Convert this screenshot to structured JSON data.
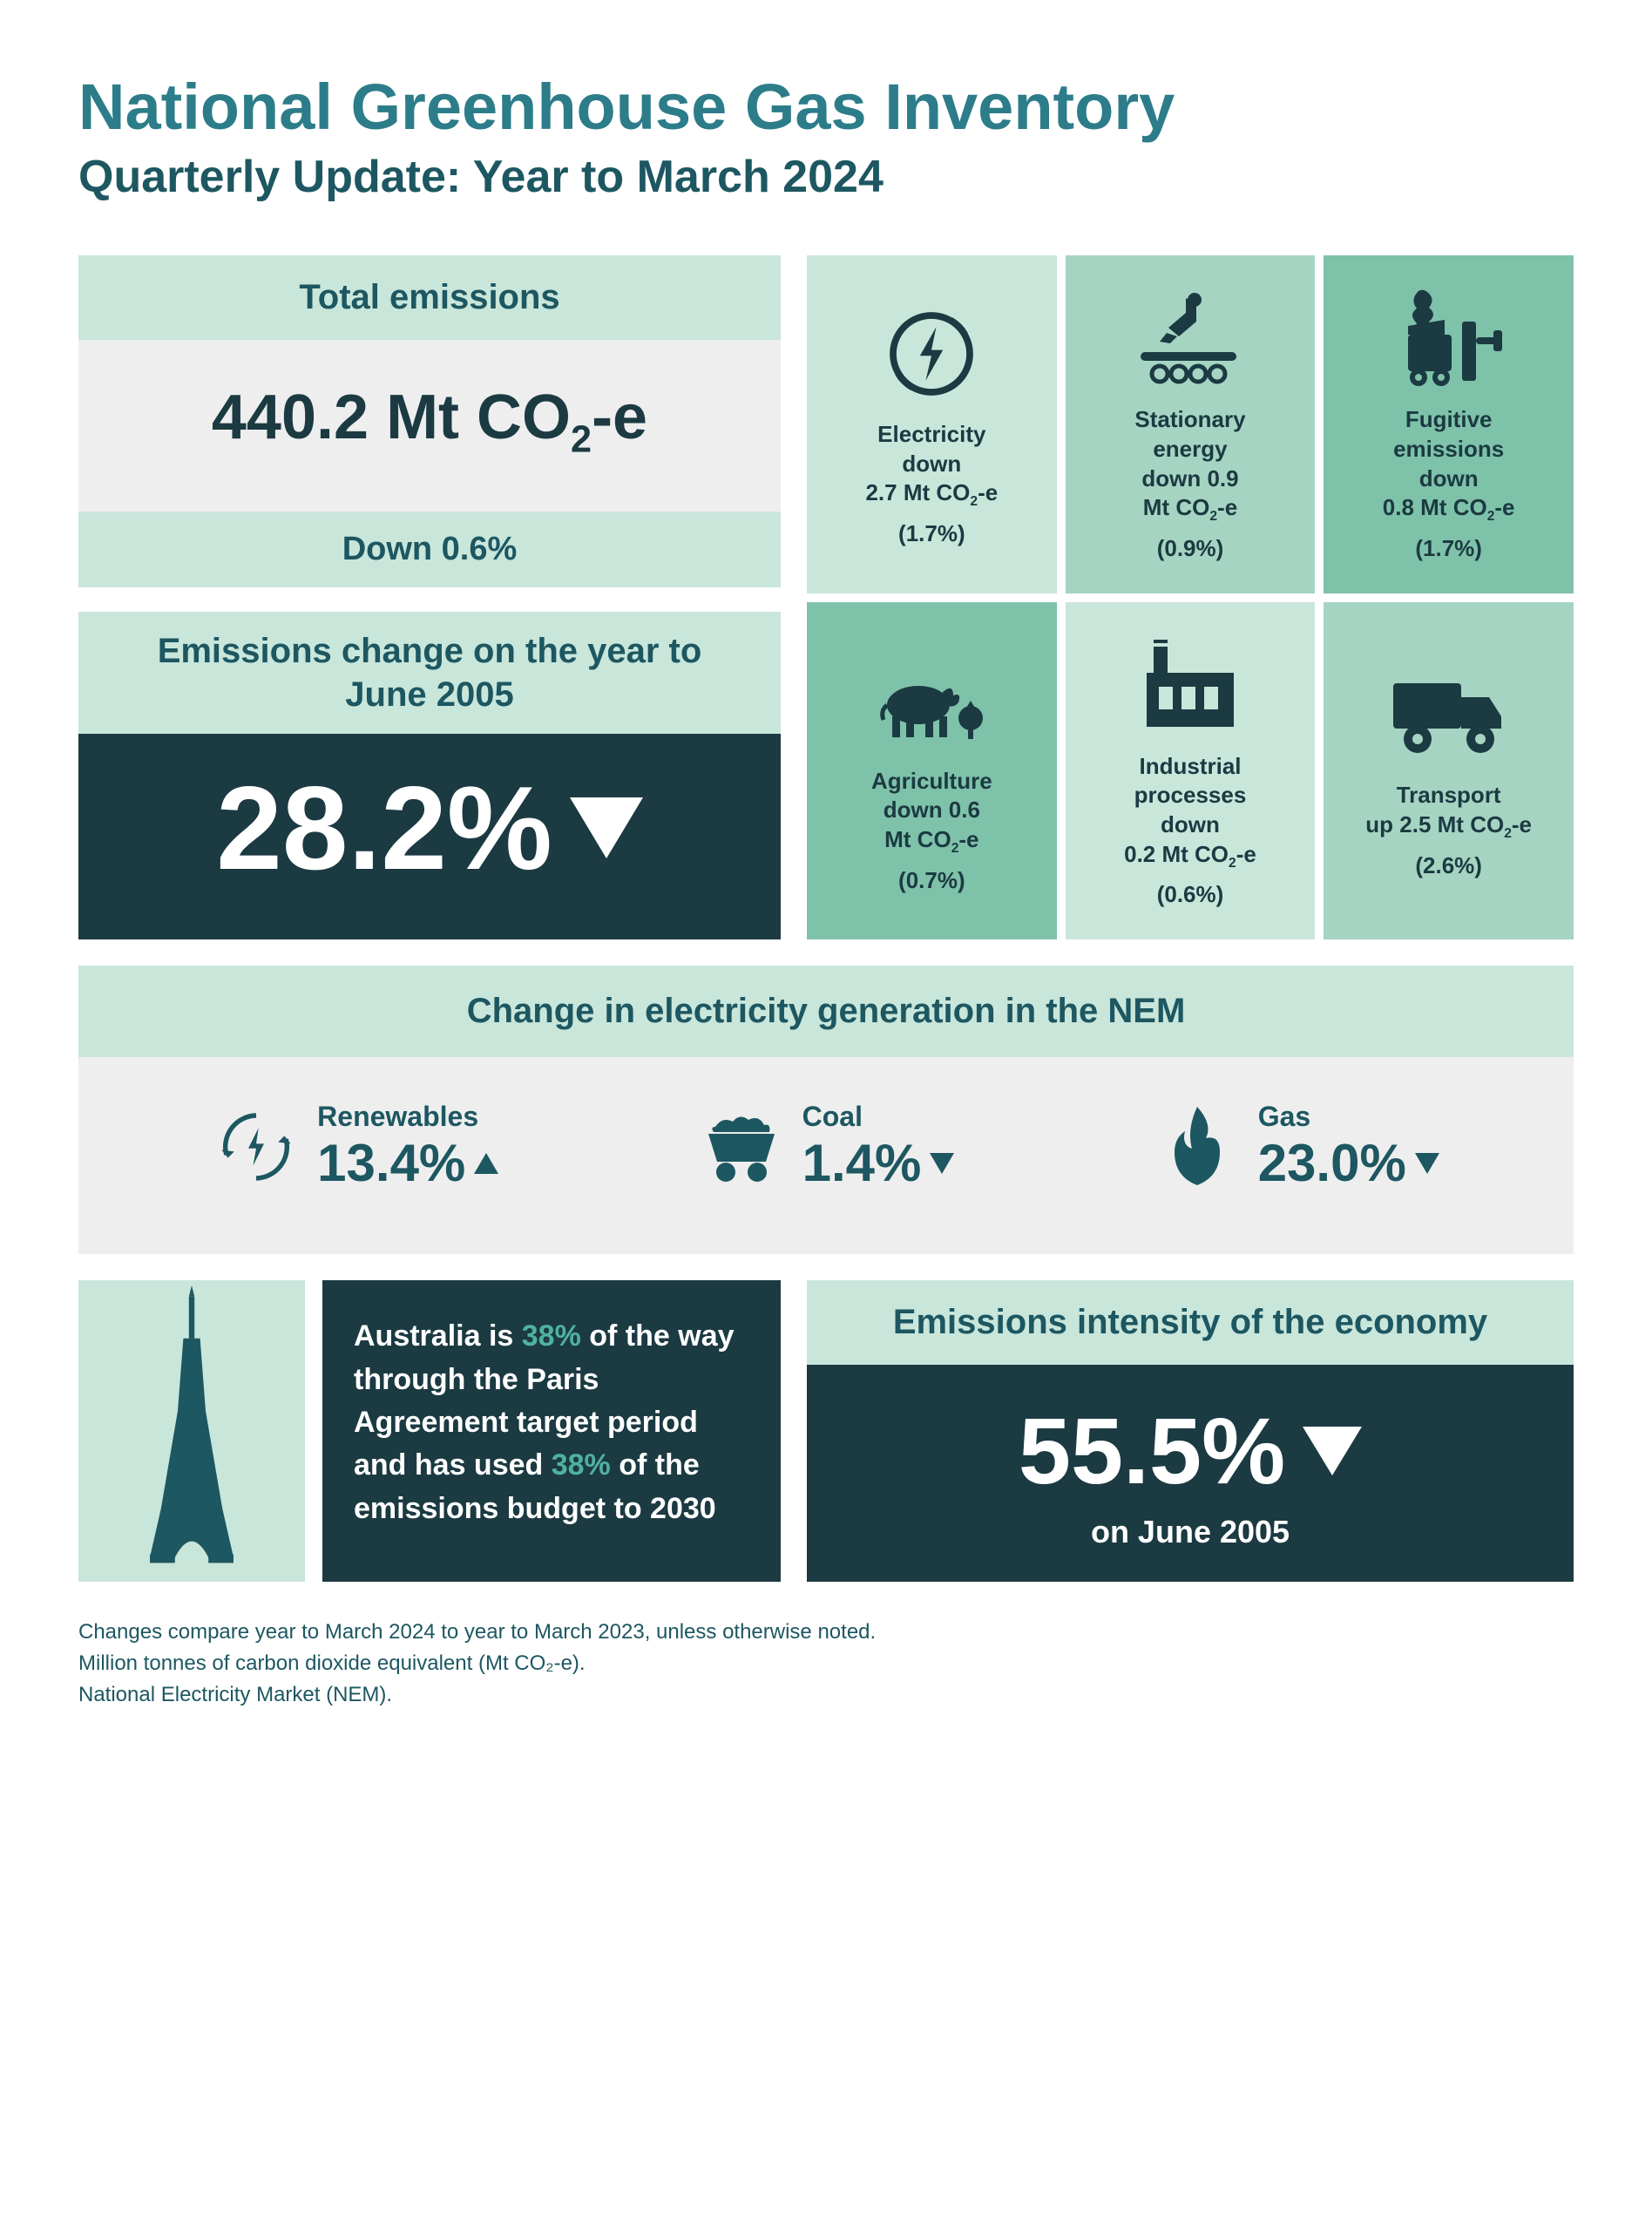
{
  "type": "infographic",
  "colors": {
    "teal_dark": "#1b3a42",
    "teal_mid": "#1d5761",
    "teal_accent": "#2c7d89",
    "mint_light": "#c9e6db",
    "mint_mid": "#a6d4c2",
    "mint_dark": "#7fc2aa",
    "gray_light": "#eeeeee",
    "paris_accent": "#4fb2a0",
    "white": "#ffffff"
  },
  "title": "National Greenhouse Gas Inventory",
  "subtitle": "Quarterly Update: Year to March 2024",
  "total": {
    "heading": "Total emissions",
    "value_prefix": "440.2 Mt CO",
    "value_sub": "2",
    "value_suffix": "-e",
    "footer": "Down 0.6%"
  },
  "change": {
    "heading": "Emissions change on the year to June 2005",
    "value": "28.2%",
    "direction": "down"
  },
  "sectors": [
    {
      "name": "Electricity",
      "direction": "down",
      "amount": "2.7 Mt CO",
      "sub": "2",
      "suf": "-e",
      "pct": "(1.7%)",
      "bg": "bg-a",
      "icon": "bolt"
    },
    {
      "name": "Stationary energy",
      "direction": "down",
      "amount": "0.9 Mt CO",
      "sub": "2",
      "suf": "-e",
      "pct": "(0.9%)",
      "bg": "bg-b",
      "icon": "robot",
      "prefix": "down "
    },
    {
      "name": "Fugitive emissions",
      "direction": "down",
      "amount": "0.8 Mt CO",
      "sub": "2",
      "suf": "-e",
      "pct": "(1.7%)",
      "bg": "bg-c",
      "icon": "fugitive"
    },
    {
      "name": "Agriculture",
      "direction": "down",
      "amount": "0.6 Mt CO",
      "sub": "2",
      "suf": "-e",
      "pct": "(0.7%)",
      "bg": "bg-c",
      "icon": "cow"
    },
    {
      "name": "Industrial processes",
      "direction": "down",
      "amount": "0.2 Mt CO",
      "sub": "2",
      "suf": "-e",
      "pct": "(0.6%)",
      "bg": "bg-a",
      "icon": "factory"
    },
    {
      "name": "Transport",
      "direction": "up",
      "amount": "2.5 Mt CO",
      "sub": "2",
      "suf": "-e",
      "pct": "(2.6%)",
      "bg": "bg-b",
      "icon": "truck"
    }
  ],
  "nem": {
    "heading": "Change in electricity generation in the NEM",
    "items": [
      {
        "label": "Renewables",
        "value": "13.4%",
        "direction": "up",
        "icon": "renew"
      },
      {
        "label": "Coal",
        "value": "1.4%",
        "direction": "down",
        "icon": "cart"
      },
      {
        "label": "Gas",
        "value": "23.0%",
        "direction": "down",
        "icon": "flame"
      }
    ]
  },
  "paris": {
    "text_pre": "Australia is ",
    "pct1": "38%",
    "text_mid": " of the way through the Paris Agreement target period and has used ",
    "pct2": "38%",
    "text_post": " of the emissions budget to 2030"
  },
  "intensity": {
    "heading": "Emissions intensity of the economy",
    "value": "55.5%",
    "direction": "down",
    "sub": "on June 2005"
  },
  "footnotes": [
    "Changes compare year to March 2024 to year to March 2023, unless otherwise noted.",
    "Million tonnes of carbon dioxide equivalent (Mt CO₂-e).",
    "National Electricity Market (NEM)."
  ]
}
